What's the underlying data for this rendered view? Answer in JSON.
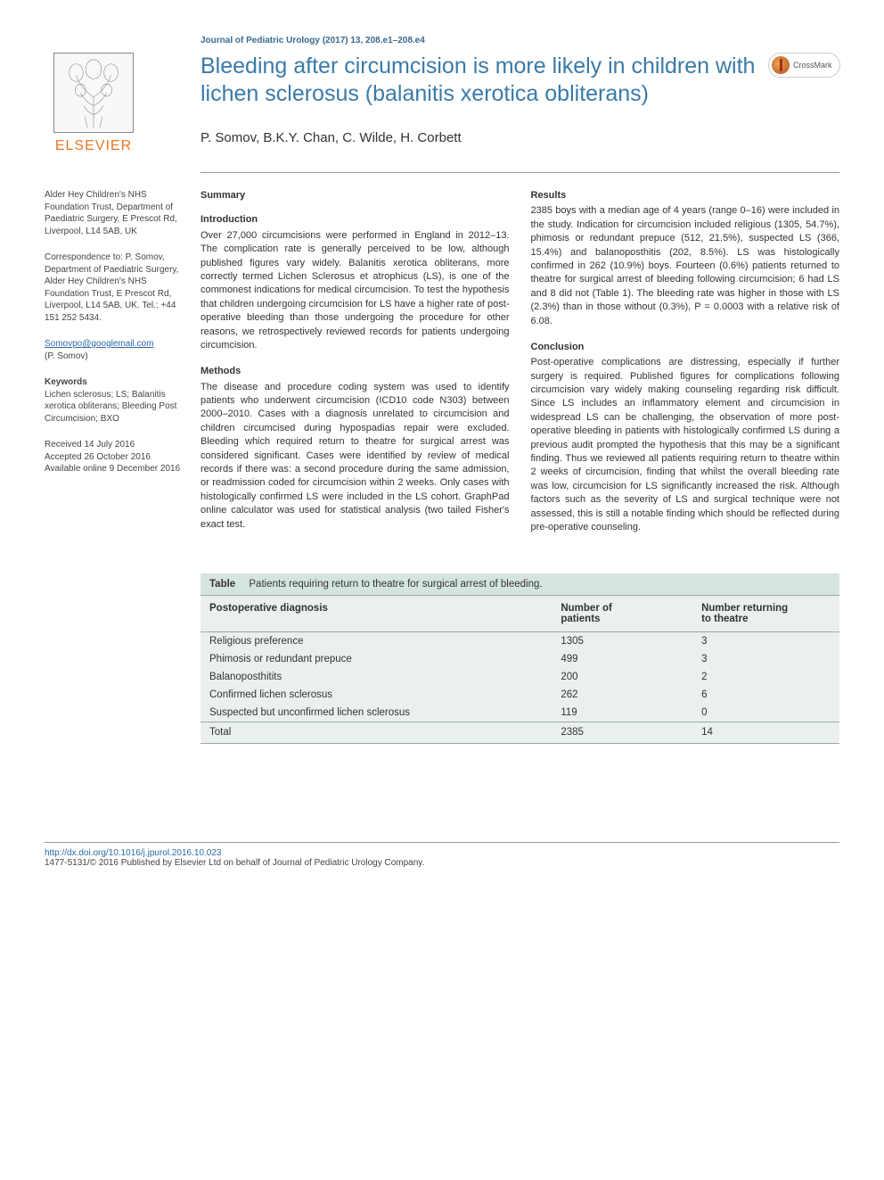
{
  "journal_ref": "Journal of Pediatric Urology (2017) 13, 208.e1–208.e4",
  "publisher_logo_text": "ELSEVIER",
  "crossmark_label": "CrossMark",
  "title": "Bleeding after circumcision is more likely in children with lichen sclerosus (balanitis xerotica obliterans)",
  "authors": "P. Somov, B.K.Y. Chan, C. Wilde, H. Corbett",
  "sidebar": {
    "affiliation": "Alder Hey Children's NHS Foundation Trust, Department of Paediatric Surgery, E Prescot Rd, Liverpool, L14 5AB, UK",
    "correspondence": "Correspondence to: P. Somov, Department of Paediatric Surgery, Alder Hey Children's NHS Foundation Trust, E Prescot Rd, Liverpool, L14 5AB, UK. Tel.: +44 151 252 5434.",
    "email": "Somovpo@googlemail.com",
    "email_attr": "(P. Somov)",
    "keywords_label": "Keywords",
    "keywords": "Lichen sclerosus; LS; Balanitis xerotica obliterans; Bleeding Post Circumcision; BXO",
    "dates": "Received 14 July 2016\nAccepted 26 October 2016\nAvailable online 9 December 2016"
  },
  "summary_label": "Summary",
  "sections": {
    "intro_head": "Introduction",
    "intro_body": "Over 27,000 circumcisions were performed in England in 2012–13. The complication rate is generally perceived to be low, although published figures vary widely. Balanitis xerotica obliterans, more correctly termed Lichen Sclerosus et atrophicus (LS), is one of the commonest indications for medical circumcision. To test the hypothesis that children undergoing circumcision for LS have a higher rate of post-operative bleeding than those undergoing the procedure for other reasons, we retrospectively reviewed records for patients undergoing circumcision.",
    "methods_head": "Methods",
    "methods_body": "The disease and procedure coding system was used to identify patients who underwent circumcision (ICD10 code N303) between 2000–2010. Cases with a diagnosis unrelated to circumcision and children circumcised during hypospadias repair were excluded. Bleeding which required return to theatre for surgical arrest was considered significant. Cases were identified by review of medical records if there was: a second procedure during the same admission, or readmission coded for circumcision within 2 weeks. Only cases with histologically confirmed LS were included in the LS cohort. GraphPad online calculator was used for statistical analysis (two tailed Fisher's exact test.",
    "results_head": "Results",
    "results_body": "2385 boys with a median age of 4 years (range 0–16) were included in the study. Indication for circumcision included religious (1305, 54.7%), phimosis or redundant prepuce (512, 21.5%), suspected LS (366, 15.4%) and balanoposthitis (202, 8.5%). LS was histologically confirmed in 262 (10.9%) boys. Fourteen (0.6%) patients returned to theatre for surgical arrest of bleeding following circumcision; 6 had LS and 8 did not (Table 1). The bleeding rate was higher in those with LS (2.3%) than in those without (0.3%), P = 0.0003 with a relative risk of 6.08.",
    "conclusion_head": "Conclusion",
    "conclusion_body": "Post-operative complications are distressing, especially if further surgery is required. Published figures for complications following circumcision vary widely making counseling regarding risk difficult. Since LS includes an inflammatory element and circumcision in widespread LS can be challenging, the observation of more post-operative bleeding in patients with histologically confirmed LS during a previous audit prompted the hypothesis that this may be a significant finding. Thus we reviewed all patients requiring return to theatre within 2 weeks of circumcision, finding that whilst the overall bleeding rate was low, circumcision for LS significantly increased the risk. Although factors such as the severity of LS and surgical technique were not assessed, this is still a notable finding which should be reflected during pre-operative counseling."
  },
  "table": {
    "caption_label": "Table",
    "caption_text": "Patients requiring return to theatre for surgical arrest of bleeding.",
    "columns": [
      "Postoperative diagnosis",
      "Number of patients",
      "Number returning to theatre"
    ],
    "col_widths": [
      "55%",
      "22%",
      "23%"
    ],
    "header_bg": "#eaf0ee",
    "caption_bg": "#d6e4e0",
    "border_color": "#9aaaa4",
    "rows": [
      [
        "Religious preference",
        "1305",
        "3"
      ],
      [
        "Phimosis or redundant prepuce",
        "499",
        "3"
      ],
      [
        "Balanoposthitits",
        "200",
        "2"
      ],
      [
        "Confirmed lichen sclerosus",
        "262",
        "6"
      ],
      [
        "Suspected but unconfirmed lichen sclerosus",
        "119",
        "0"
      ]
    ],
    "total_row": [
      "Total",
      "2385",
      "14"
    ]
  },
  "footer": {
    "doi": "http://dx.doi.org/10.1016/j.jpurol.2016.10.023",
    "copyright": "1477-5131/© 2016 Published by Elsevier Ltd on behalf of Journal of Pediatric Urology Company."
  },
  "colors": {
    "title_color": "#3a7aa8",
    "journal_ref_color": "#3a6a8f",
    "elsevier_orange": "#e87722",
    "link_color": "#2a6aa8",
    "text_color": "#333333",
    "rule_color": "#999999"
  }
}
